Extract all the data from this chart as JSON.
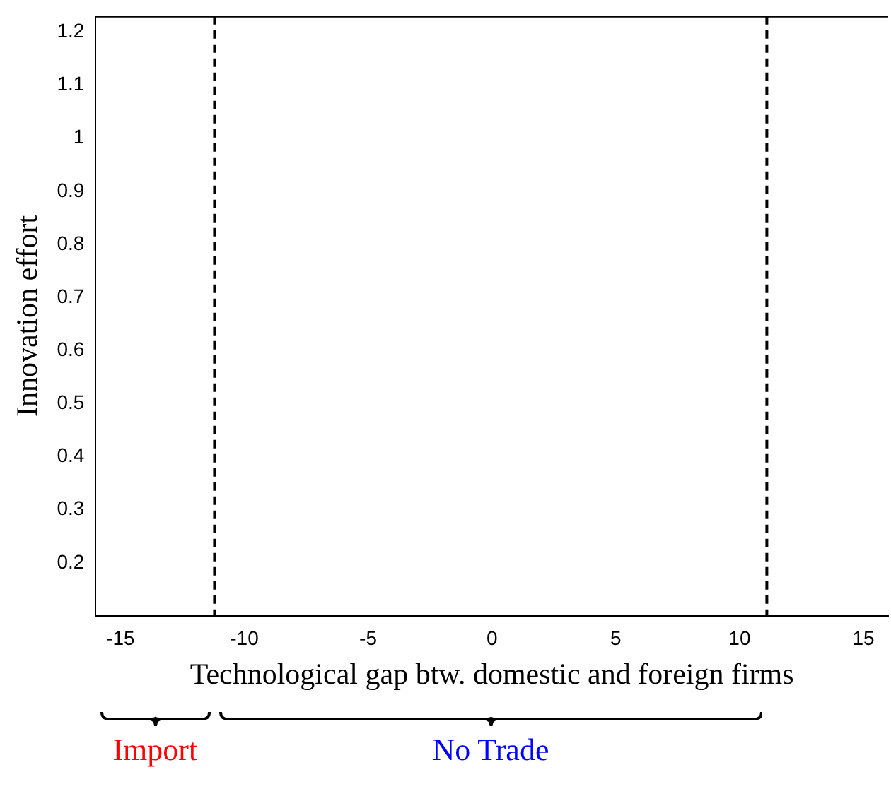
{
  "chart_data": {
    "type": "line",
    "xlabel": "Technological gap btw. domestic and foreign firms",
    "ylabel": "Innovation effort",
    "xlim": [
      -16,
      16
    ],
    "xticks": [
      -15,
      -10,
      -5,
      0,
      5,
      10,
      15
    ],
    "ylim": [
      0.1,
      1.23
    ],
    "yticks": [
      0.2,
      0.3,
      0.4,
      0.5,
      0.6,
      0.7,
      0.8,
      0.9,
      1,
      1.1,
      1.2
    ],
    "ref_lines": [
      {
        "axis": "x",
        "value": -11.2,
        "line_style": "dashed",
        "color": "#000000"
      },
      {
        "axis": "x",
        "value": 11.1,
        "line_style": "dashed",
        "color": "#000000"
      }
    ],
    "annotations": [
      "Import",
      "No Trade"
    ],
    "grid": false,
    "legend": false
  }
}
